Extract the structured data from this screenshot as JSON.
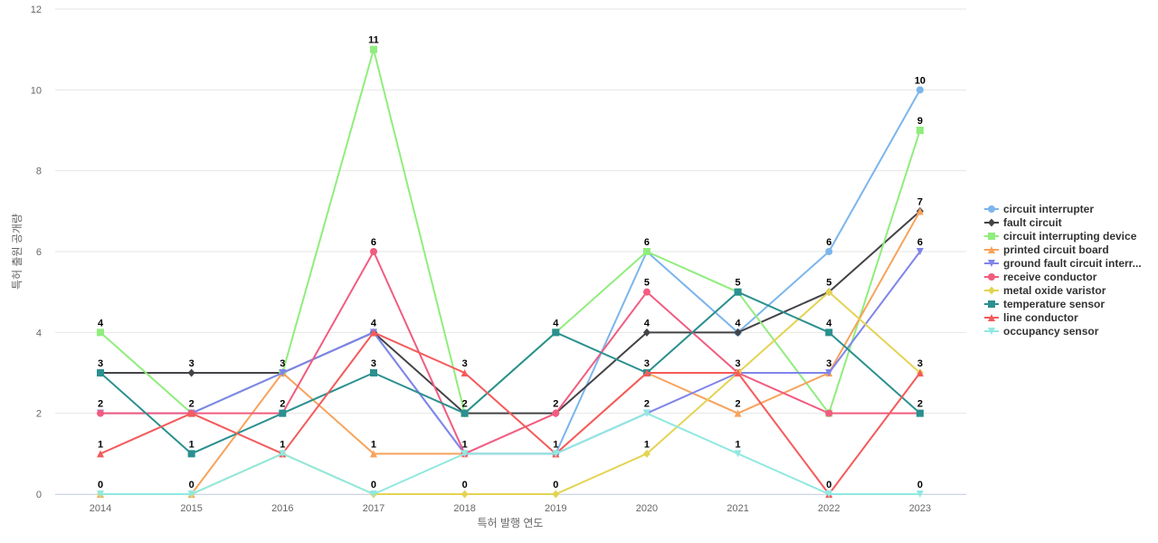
{
  "chart_data": {
    "type": "line",
    "title": "",
    "xlabel": "특허 발행 연도",
    "ylabel": "특허 출원 공개량",
    "ylim": [
      0,
      12
    ],
    "yticks": [
      0,
      2,
      4,
      6,
      8,
      10,
      12
    ],
    "grid": true,
    "legend_position": "right",
    "categories": [
      "2014",
      "2015",
      "2016",
      "2017",
      "2018",
      "2019",
      "2020",
      "2021",
      "2022",
      "2023"
    ],
    "series": [
      {
        "name": "circuit interrupter",
        "legend_label": "circuit interrupter",
        "color": "#7cb5ec",
        "marker": "circle",
        "values": [
          null,
          2,
          3,
          4,
          1,
          1,
          6,
          4,
          6,
          10
        ],
        "labels": [
          null,
          null,
          null,
          null,
          null,
          null,
          "6",
          null,
          "6",
          "10"
        ]
      },
      {
        "name": "fault circuit",
        "legend_label": "fault circuit",
        "color": "#434348",
        "marker": "diamond",
        "values": [
          3,
          3,
          3,
          4,
          2,
          2,
          4,
          4,
          5,
          7
        ],
        "labels": [
          "3",
          "3",
          null,
          null,
          null,
          null,
          "4",
          "4",
          null,
          null
        ]
      },
      {
        "name": "circuit interrupting device",
        "legend_label": "circuit interrupting device",
        "color": "#90ed7d",
        "marker": "square",
        "values": [
          4,
          2,
          3,
          11,
          2,
          4,
          6,
          5,
          2,
          9
        ],
        "labels": [
          "4",
          null,
          null,
          "11",
          null,
          null,
          null,
          null,
          null,
          "9"
        ]
      },
      {
        "name": "printed circuit board",
        "legend_label": "printed circuit board",
        "color": "#f7a35c",
        "marker": "triangle",
        "values": [
          0,
          0,
          3,
          1,
          1,
          1,
          3,
          2,
          3,
          7
        ],
        "labels": [
          null,
          null,
          "3",
          "1",
          null,
          null,
          null,
          "2",
          null,
          "7"
        ]
      },
      {
        "name": "ground fault circuit interrupter",
        "legend_label": "ground fault circuit interr...",
        "color": "#8085e9",
        "marker": "triangle-down",
        "values": [
          2,
          2,
          3,
          4,
          1,
          1,
          2,
          3,
          3,
          6
        ],
        "labels": [
          null,
          null,
          null,
          "4",
          null,
          null,
          null,
          null,
          "3",
          "6"
        ]
      },
      {
        "name": "receive conductor",
        "legend_label": "receive conductor",
        "color": "#f15c80",
        "marker": "circle",
        "values": [
          2,
          2,
          2,
          6,
          1,
          2,
          5,
          3,
          2,
          2
        ],
        "labels": [
          "2",
          null,
          null,
          "6",
          null,
          "2",
          "5",
          null,
          null,
          null
        ]
      },
      {
        "name": "metal oxide varistor",
        "legend_label": "metal oxide varistor",
        "color": "#e4d354",
        "marker": "diamond",
        "values": [
          0,
          0,
          1,
          0,
          0,
          0,
          1,
          3,
          5,
          3
        ],
        "labels": [
          null,
          null,
          null,
          null,
          "0",
          "0",
          "1",
          "3",
          "5",
          "3"
        ]
      },
      {
        "name": "temperature sensor",
        "legend_label": "temperature sensor",
        "color": "#2b908f",
        "marker": "square",
        "values": [
          3,
          1,
          2,
          3,
          2,
          4,
          3,
          5,
          4,
          2
        ],
        "labels": [
          null,
          "1",
          "2",
          "3",
          "2",
          "4",
          "3",
          "5",
          "4",
          "2"
        ]
      },
      {
        "name": "line conductor",
        "legend_label": "line conductor",
        "color": "#f45b5b",
        "marker": "triangle",
        "values": [
          1,
          2,
          1,
          4,
          3,
          1,
          3,
          3,
          0,
          3
        ],
        "labels": [
          "1",
          "2",
          "1",
          null,
          "3",
          "1",
          null,
          null,
          null,
          null
        ]
      },
      {
        "name": "occupancy sensor",
        "legend_label": "occupancy sensor",
        "color": "#91e8e1",
        "marker": "triangle-down",
        "values": [
          0,
          0,
          1,
          0,
          1,
          1,
          2,
          1,
          0,
          0
        ],
        "labels": [
          "0",
          "0",
          null,
          "0",
          "1",
          null,
          "2",
          "1",
          "0",
          "0"
        ]
      }
    ]
  }
}
